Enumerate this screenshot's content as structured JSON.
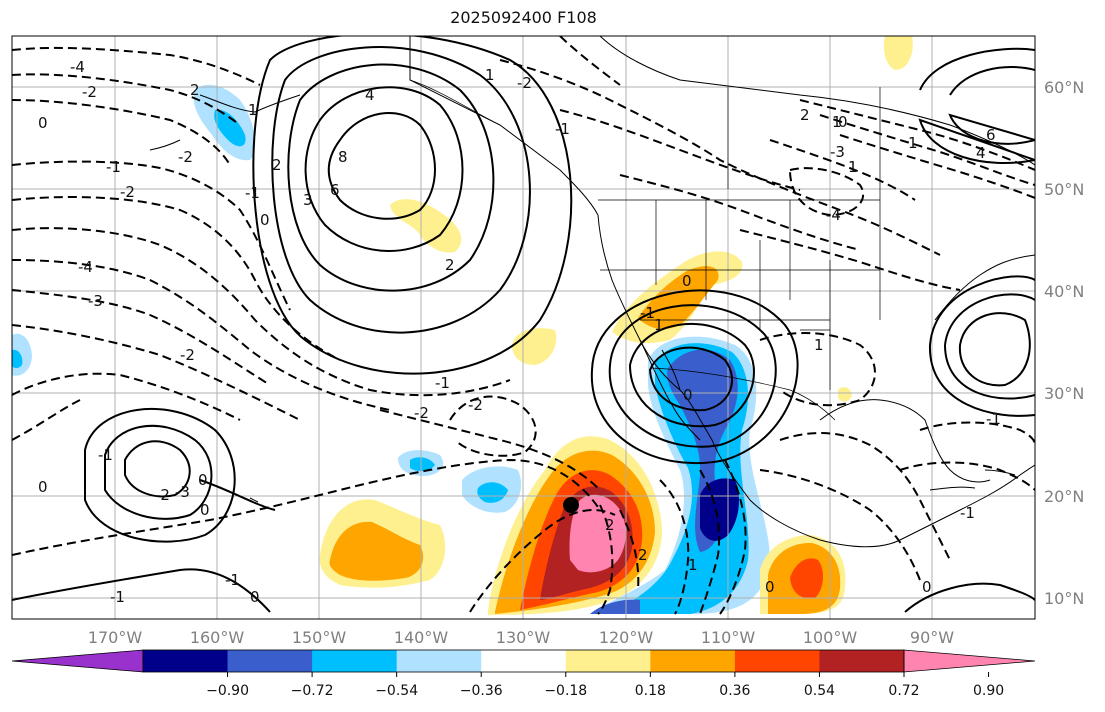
{
  "title": "2025092400 F108",
  "lon_labels": [
    "170°W",
    "160°W",
    "150°W",
    "140°W",
    "130°W",
    "120°W",
    "110°W",
    "100°W",
    "90°W"
  ],
  "lat_labels": [
    "60°N",
    "50°N",
    "40°N",
    "30°N",
    "20°N",
    "10°N"
  ],
  "colorbar": {
    "tick_labels": [
      "−0.90",
      "−0.72",
      "−0.54",
      "−0.36",
      "−0.18",
      "0.18",
      "0.36",
      "0.54",
      "0.72",
      "0.90"
    ],
    "colors": [
      "#9932cc",
      "#00008b",
      "#3a5fcd",
      "#00bfff",
      "#b0e2ff",
      "#ffffff",
      "#fff08f",
      "#ffa500",
      "#ff4500",
      "#b22222",
      "#ff85b0"
    ]
  },
  "contour_labels": [
    "-4",
    "-2",
    "0",
    "-1",
    "-2",
    "-4",
    "-3",
    "-2",
    "-2",
    "1",
    "2",
    "0",
    "-1",
    "2",
    "4",
    "8",
    "6",
    "3",
    "2",
    "-1",
    "1",
    "-2",
    "-3",
    "1",
    "-4",
    "1",
    "2",
    "0",
    "0",
    "-1",
    "1",
    "-1",
    "1",
    "-2",
    "-2",
    "-1",
    "0",
    "-2",
    "-3",
    "2",
    "0",
    "-1",
    "6",
    "4",
    "1",
    "-1",
    "-1",
    "0",
    "0",
    "0",
    "-1",
    "2",
    "1",
    "0",
    "0"
  ],
  "colors": {
    "contour": "#000000",
    "land_outline": "#000000",
    "grid": "#b0b0b0"
  }
}
